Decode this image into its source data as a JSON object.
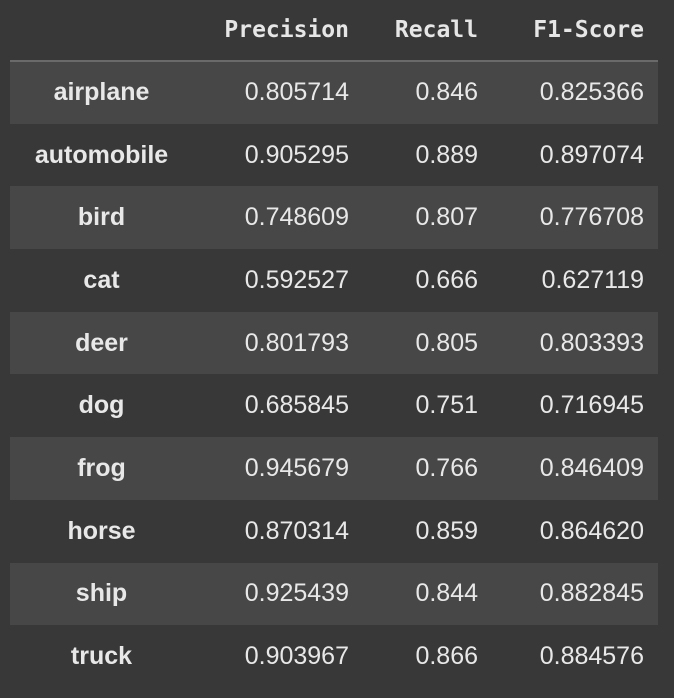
{
  "table": {
    "columns": [
      "",
      "Precision",
      "Recall",
      "F1-Score"
    ],
    "rows": [
      {
        "label": "airplane",
        "precision": "0.805714",
        "recall": "0.846",
        "f1": "0.825366"
      },
      {
        "label": "automobile",
        "precision": "0.905295",
        "recall": "0.889",
        "f1": "0.897074"
      },
      {
        "label": "bird",
        "precision": "0.748609",
        "recall": "0.807",
        "f1": "0.776708"
      },
      {
        "label": "cat",
        "precision": "0.592527",
        "recall": "0.666",
        "f1": "0.627119"
      },
      {
        "label": "deer",
        "precision": "0.801793",
        "recall": "0.805",
        "f1": "0.803393"
      },
      {
        "label": "dog",
        "precision": "0.685845",
        "recall": "0.751",
        "f1": "0.716945"
      },
      {
        "label": "frog",
        "precision": "0.945679",
        "recall": "0.766",
        "f1": "0.846409"
      },
      {
        "label": "horse",
        "precision": "0.870314",
        "recall": "0.859",
        "f1": "0.864620"
      },
      {
        "label": "ship",
        "precision": "0.925439",
        "recall": "0.844",
        "f1": "0.882845"
      },
      {
        "label": "truck",
        "precision": "0.903967",
        "recall": "0.866",
        "f1": "0.884576"
      }
    ]
  },
  "colors": {
    "background": "#383838",
    "row_alt": "#474747",
    "text": "#e8e8e8",
    "header_rule": "#6a6a6a"
  }
}
